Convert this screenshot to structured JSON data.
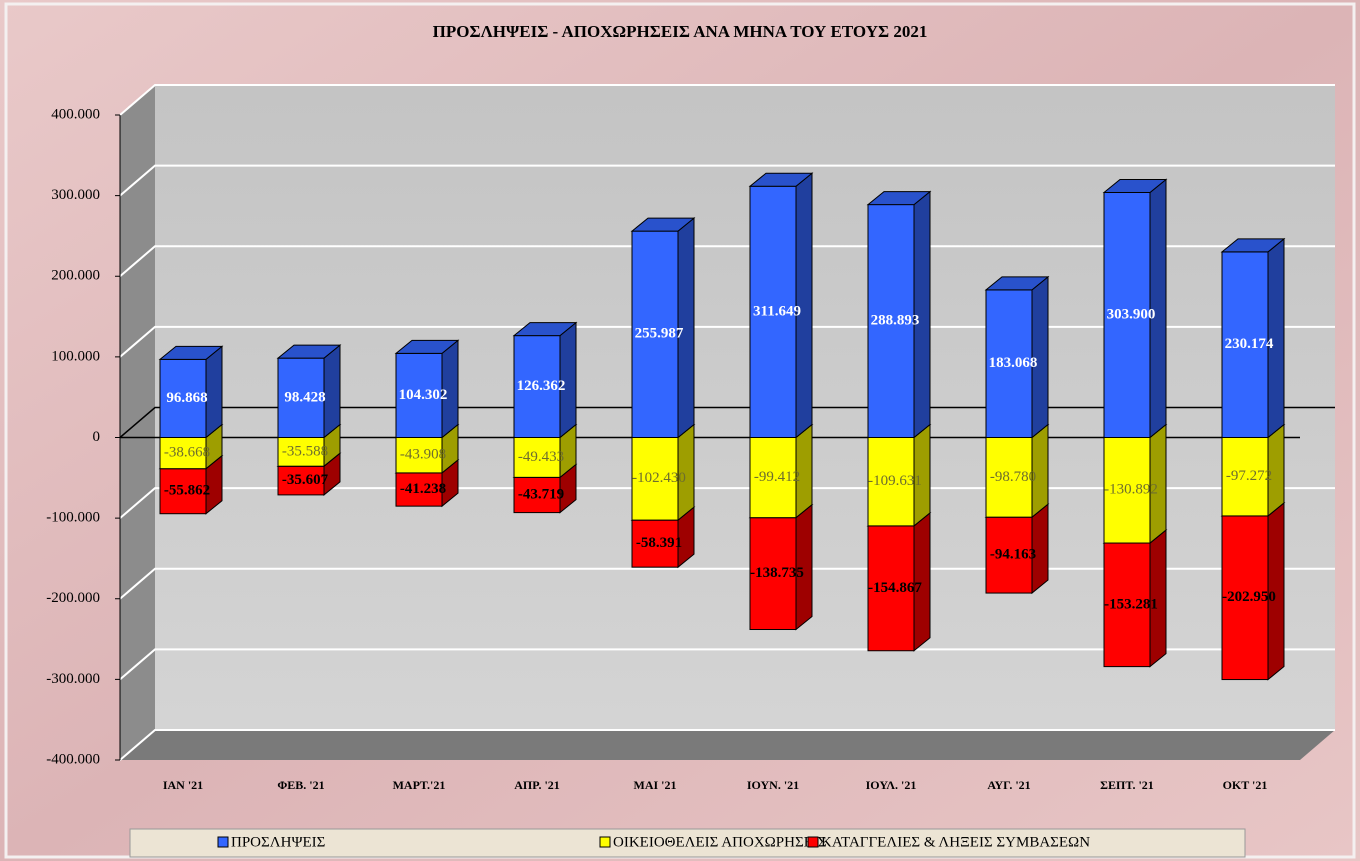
{
  "chart_data": {
    "type": "bar3d_stacked",
    "title": "ΠΡΟΣΛΗΨΕΙΣ - ΑΠΟΧΩΡΗΣΕΙΣ ΑΝΑ ΜΗΝΑ ΤΟΥ  ΕΤΟΥΣ 2021",
    "categories": [
      "ΙΑΝ  '21",
      "ΦΕΒ. '21",
      "ΜΑΡΤ.'21",
      "ΑΠΡ. '21",
      "ΜΑΙ  '21",
      "ΙΟΥΝ. '21",
      "ΙΟΥΛ. '21",
      "ΑΥΓ. '21",
      "ΣΕΠΤ. '21",
      "ΟΚΤ '21"
    ],
    "series": [
      {
        "name": "ΠΡΟΣΛΗΨΕΙΣ",
        "color": "#3366ff",
        "values": [
          96868,
          98428,
          104302,
          126362,
          255987,
          311649,
          288893,
          183068,
          303900,
          230174
        ],
        "value_labels": [
          "96.868",
          "98.428",
          "104.302",
          "126.362",
          "255.987",
          "311.649",
          "288.893",
          "183.068",
          "303.900",
          "230.174"
        ]
      },
      {
        "name": "ΟΙΚΕΙΟΘΕΛΕΙΣ ΑΠΟΧΩΡΗΣΕΙΣ",
        "color": "#ffff00",
        "values": [
          -38668,
          -35588,
          -43908,
          -49433,
          -102430,
          -99412,
          -109631,
          -98780,
          -130892,
          -97272
        ],
        "value_labels": [
          "-38.668",
          "-35.588",
          "-43.908",
          "-49.433",
          "-102.430",
          "-99.412",
          "-109.631",
          "-98.780",
          "-130.892",
          "-97.272"
        ]
      },
      {
        "name": "ΚΑΤΑΓΓΕΛΙΕΣ & ΛΗΞΕΙΣ ΣΥΜΒΑΣΕΩΝ",
        "color": "#ff0000",
        "values": [
          -55862,
          -35607,
          -41238,
          -43719,
          -58391,
          -138735,
          -154867,
          -94163,
          -153281,
          -202950
        ],
        "value_labels": [
          "-55.862",
          "-35.607",
          "-41.238",
          "-43.719",
          "-58.391",
          "-138.735",
          "-154.867",
          "-94.163",
          "-153.281",
          "-202.950"
        ]
      }
    ],
    "ylim": [
      -400000,
      400000
    ],
    "yticks": [
      {
        "value": -400000,
        "label": "-400.000"
      },
      {
        "value": -300000,
        "label": "-300.000"
      },
      {
        "value": -200000,
        "label": "-200.000"
      },
      {
        "value": -100000,
        "label": "-100.000"
      },
      0,
      {
        "value": 100000,
        "label": "100.000"
      },
      {
        "value": 200000,
        "label": "200.000"
      },
      {
        "value": 300000,
        "label": "300.000"
      },
      {
        "value": 400000,
        "label": "400.000"
      }
    ],
    "grid": true,
    "legend": "bottom"
  }
}
